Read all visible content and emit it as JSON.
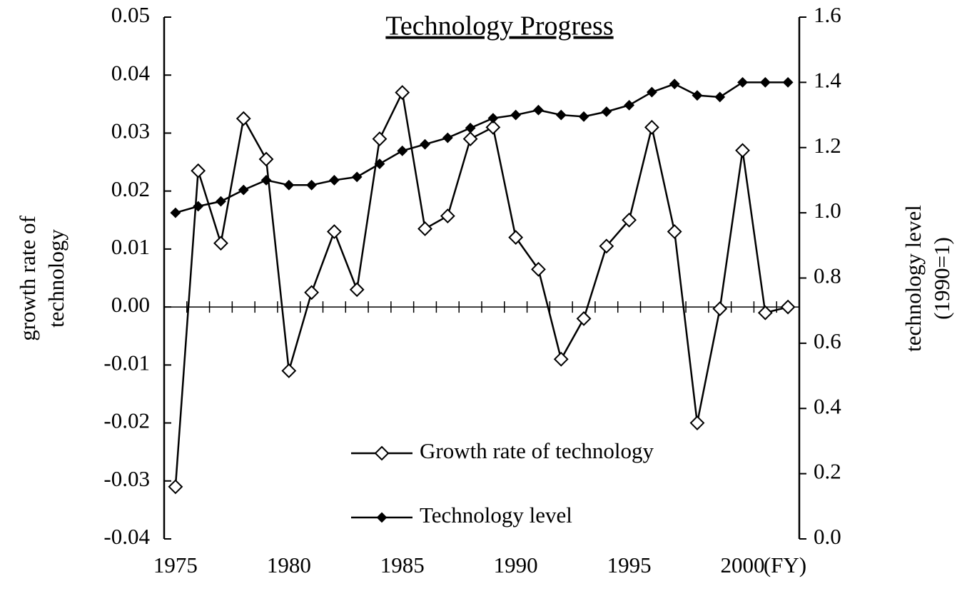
{
  "chart_data": {
    "type": "line",
    "title": "Technology Progress",
    "xlabel": "(FY)",
    "ylabel": [
      "growth rate of",
      "technology"
    ],
    "y2label": [
      "technology level",
      "(1990=1)"
    ],
    "x": [
      1975,
      1976,
      1977,
      1978,
      1979,
      1980,
      1981,
      1982,
      1983,
      1984,
      1985,
      1986,
      1987,
      1988,
      1989,
      1990,
      1991,
      1992,
      1993,
      1994,
      1995,
      1996,
      1997,
      1998,
      1999,
      2000,
      2001,
      2002
    ],
    "xlim": [
      1974.5,
      2002.5
    ],
    "xticks": [
      1975,
      1980,
      1985,
      1990,
      1995,
      2000
    ],
    "ylim": [
      -0.04,
      0.05
    ],
    "yticks": [
      -0.04,
      -0.03,
      -0.02,
      -0.01,
      {
        "value": 0,
        "label": "0.00"
      },
      0.01,
      0.02,
      0.03,
      0.04,
      0.05
    ],
    "y2lim": [
      0,
      1.6
    ],
    "y2ticks": [
      {
        "value": 0,
        "label": "0.0"
      },
      0.2,
      0.4,
      0.6,
      0.8,
      {
        "value": 1,
        "label": "1.0"
      },
      1.2,
      1.4,
      1.6
    ],
    "legend": "lower center",
    "series": [
      {
        "name": "Growth rate of technology",
        "color": "#000000",
        "marker": "open-diamond",
        "values": [
          -0.031,
          0.0235,
          0.011,
          0.0325,
          0.0255,
          -0.011,
          0.0025,
          0.013,
          0.003,
          0.029,
          0.037,
          0.0135,
          0.0157,
          0.029,
          0.031,
          0.012,
          0.0065,
          -0.009,
          -0.002,
          0.0105,
          0.015,
          0.031,
          0.013,
          -0.02,
          -0.0003,
          0.027,
          -0.001,
          0.0
        ]
      },
      {
        "name": "Technology level",
        "color": "#000000",
        "marker": "filled-diamond",
        "axis": "y2",
        "values": [
          1.0,
          1.02,
          1.035,
          1.07,
          1.1,
          1.085,
          1.085,
          1.1,
          1.11,
          1.15,
          1.19,
          1.21,
          1.23,
          1.26,
          1.29,
          1.3,
          1.315,
          1.3,
          1.295,
          1.31,
          1.33,
          1.37,
          1.395,
          1.36,
          1.355,
          1.4,
          1.4,
          1.4
        ]
      }
    ]
  }
}
